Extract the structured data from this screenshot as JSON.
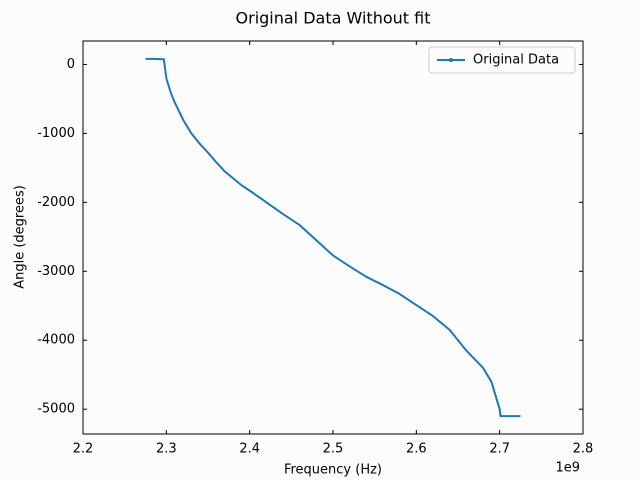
{
  "chart_data": {
    "type": "line",
    "title": "Original Data Without fit",
    "x_label": "Frequency (Hz)",
    "y_label": "Angle (degrees)",
    "x_offset_text": "1e9",
    "x": [
      2.275,
      2.285,
      2.297,
      2.3,
      2.305,
      2.31,
      2.32,
      2.33,
      2.34,
      2.35,
      2.36,
      2.37,
      2.38,
      2.39,
      2.4,
      2.42,
      2.44,
      2.46,
      2.48,
      2.5,
      2.52,
      2.54,
      2.56,
      2.58,
      2.6,
      2.62,
      2.64,
      2.65,
      2.66,
      2.68,
      2.69,
      2.695,
      2.7,
      2.701,
      2.71,
      2.725
    ],
    "series": [
      {
        "name": "Original Data",
        "color": "#1f77b4",
        "values": [
          80,
          80,
          75,
          -200,
          -400,
          -550,
          -800,
          -1000,
          -1150,
          -1280,
          -1420,
          -1550,
          -1650,
          -1750,
          -1830,
          -2000,
          -2170,
          -2330,
          -2550,
          -2770,
          -2930,
          -3080,
          -3200,
          -3330,
          -3490,
          -3650,
          -3850,
          -4000,
          -4150,
          -4400,
          -4600,
          -4800,
          -5000,
          -5100,
          -5100,
          -5100
        ]
      }
    ],
    "xlim": [
      2.2,
      2.8
    ],
    "ylim": [
      -5360,
      340
    ],
    "xticks": [
      2.2,
      2.3,
      2.4,
      2.5,
      2.6,
      2.7,
      2.8
    ],
    "yticks": [
      0,
      -1000,
      -2000,
      -3000,
      -4000,
      -5000
    ],
    "legend": "upper right"
  }
}
